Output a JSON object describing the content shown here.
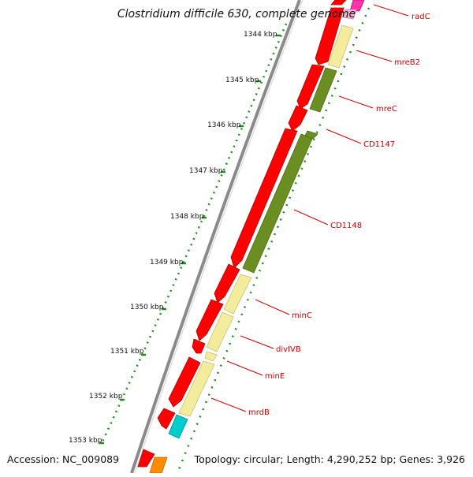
{
  "title": "Clostridium difficile 630, complete genome",
  "accession": "Accession: NC_009089",
  "topology": "Topology: circular; Length: 4,290,252 bp; Genes: 3,926",
  "ticks": [
    "1344 kbp",
    "1345 kbp",
    "1346 kbp",
    "1347 kbp",
    "1348 kbp",
    "1349 kbp",
    "1350 kbp",
    "1351 kbp",
    "1352 kbp",
    "1353 kbp"
  ],
  "gene_labels": [
    "radC",
    "mreB2",
    "mreC",
    "CD1147",
    "CD1148",
    "minC",
    "divIVB",
    "minE",
    "mrdB"
  ],
  "colors": {
    "cds": "#ff0000",
    "pale": "#f2ec9c",
    "olive": "#6b8e23",
    "cyan": "#00cccc",
    "magenta": "#ff33aa",
    "orange": "#ff8c00",
    "tick_dots": "#228b22",
    "label": "#d00000"
  }
}
